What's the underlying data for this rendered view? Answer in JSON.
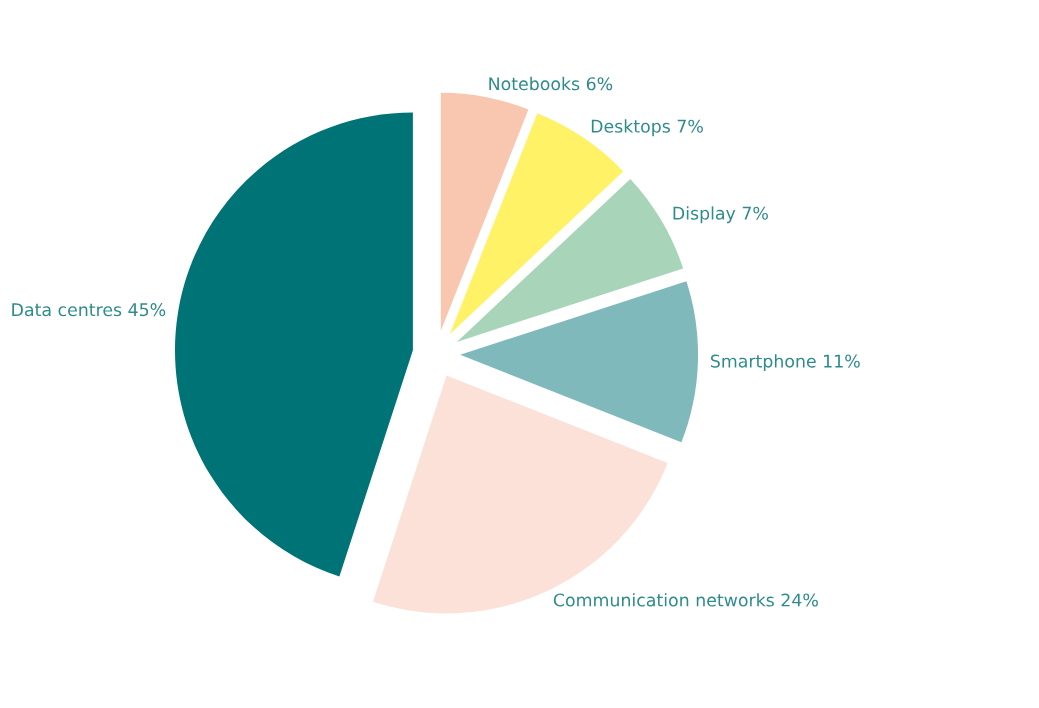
{
  "chart_data": {
    "type": "pie",
    "categories": [
      "Notebooks",
      "Desktops",
      "Display",
      "Smartphone",
      "Communication networks",
      "Data centres"
    ],
    "values": [
      6,
      7,
      7,
      11,
      24,
      45
    ],
    "value_labels": [
      "6%",
      "7%",
      "7%",
      "11%",
      "24%",
      "45%"
    ],
    "colors": [
      "#f9c6b0",
      "#fff266",
      "#a8d5b9",
      "#80b9bb",
      "#fbe1d7",
      "#007377"
    ]
  }
}
